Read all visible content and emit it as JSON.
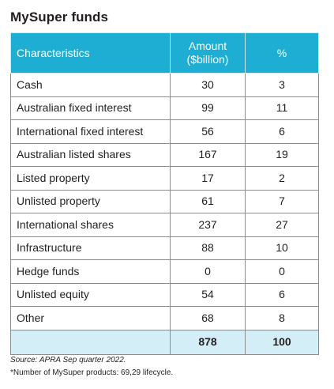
{
  "title": "MySuper funds",
  "table": {
    "headers": {
      "characteristics": "Characteristics",
      "amount_line1": "Amount",
      "amount_line2": "($billion)",
      "percent": "%"
    },
    "rows": [
      {
        "label": "Cash",
        "amount": "30",
        "percent": "3"
      },
      {
        "label": "Australian fixed interest",
        "amount": "99",
        "percent": "11"
      },
      {
        "label": "International fixed interest",
        "amount": "56",
        "percent": "6"
      },
      {
        "label": "Australian listed shares",
        "amount": "167",
        "percent": "19"
      },
      {
        "label": "Listed property",
        "amount": "17",
        "percent": "2"
      },
      {
        "label": "Unlisted property",
        "amount": "61",
        "percent": "7"
      },
      {
        "label": "International shares",
        "amount": "237",
        "percent": "27"
      },
      {
        "label": "Infrastructure",
        "amount": "88",
        "percent": "10"
      },
      {
        "label": "Hedge funds",
        "amount": "0",
        "percent": "0"
      },
      {
        "label": "Unlisted equity",
        "amount": "54",
        "percent": "6"
      },
      {
        "label": "Other",
        "amount": "68",
        "percent": "8"
      }
    ],
    "total": {
      "label": "",
      "amount": "878",
      "percent": "100"
    }
  },
  "source": "Source: APRA Sep quarter 2022.",
  "footnote": "*Number of MySuper products: 69,29 lifecycle.",
  "colors": {
    "header_bg": "#1faed3",
    "total_bg": "#d4eef8"
  }
}
